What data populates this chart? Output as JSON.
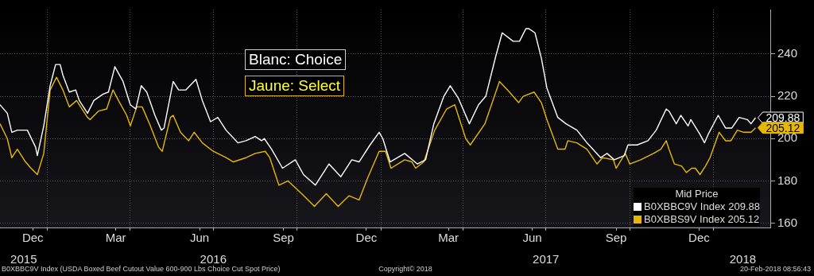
{
  "chart_data": {
    "type": "line",
    "legend_title": "Mid Price",
    "legend": "bottom right",
    "grid": true,
    "marker": "none",
    "line_style": "solid",
    "xlim": [
      "2015-11-10",
      "2018-03-05"
    ],
    "xticks": [
      {
        "value": "2015-12-16",
        "label": "Dec"
      },
      {
        "value": "2016-01-01",
        "label": null
      },
      {
        "value": "2016-03-16",
        "label": "Mar"
      },
      {
        "value": "2016-04-01",
        "label": null
      },
      {
        "value": "2016-06-16",
        "label": "Jun"
      },
      {
        "value": "2016-07-01",
        "label": null
      },
      {
        "value": "2016-09-16",
        "label": "Sep"
      },
      {
        "value": "2016-10-01",
        "label": null
      },
      {
        "value": "2016-12-16",
        "label": "Dec"
      },
      {
        "value": "2017-01-01",
        "label": null
      },
      {
        "value": "2017-03-16",
        "label": "Mar"
      },
      {
        "value": "2017-04-01",
        "label": null
      },
      {
        "value": "2017-06-16",
        "label": "Jun"
      },
      {
        "value": "2017-07-01",
        "label": null
      },
      {
        "value": "2017-09-16",
        "label": "Sep"
      },
      {
        "value": "2017-10-01",
        "label": null
      },
      {
        "value": "2017-12-16",
        "label": "Dec"
      },
      {
        "value": "2018-01-01",
        "label": null
      }
    ],
    "x2lim": [
      "2015-11-10",
      "2018-03-05"
    ],
    "x2ticks": [
      {
        "value": "2015-12-06",
        "label": "2015"
      },
      {
        "value": "2016-07-01",
        "label": "2016"
      },
      {
        "value": "2017-07-01",
        "label": "2017"
      },
      {
        "value": "2018-02-02",
        "label": "2018"
      }
    ],
    "ylim": [
      158,
      261
    ],
    "yticks": [
      160,
      180,
      200,
      220,
      240
    ],
    "annotations": [
      "Blanc: Choice",
      "Jaune: Select",
      {
        "text": "209.88",
        "x": "2018-02-16",
        "y": 209.88
      },
      {
        "text": "205.12",
        "x": "2018-02-16",
        "y": 205.12
      },
      "B0XBBC9V Index (USDA Boxed Beef Cutout Value 600-900 Lbs Choice Cut Spot Price)",
      "Copyright© 2018",
      "20-Feb-2018 08:56:43"
    ],
    "series": [
      {
        "name": "B0XBBC9V Index 209.88",
        "color": "#ffffff",
        "x": [
          "2015-11-10",
          "2015-11-18",
          "2015-11-23",
          "2015-11-29",
          "2015-12-10",
          "2015-12-19",
          "2015-12-21",
          "2015-12-28",
          "2016-01-04",
          "2016-01-10",
          "2016-01-15",
          "2016-01-18",
          "2016-01-25",
          "2016-02-01",
          "2016-02-05",
          "2016-02-14",
          "2016-02-21",
          "2016-03-02",
          "2016-03-08",
          "2016-03-15",
          "2016-03-24",
          "2016-04-01",
          "2016-04-07",
          "2016-04-13",
          "2016-04-19",
          "2016-04-28",
          "2016-05-05",
          "2016-05-08",
          "2016-05-18",
          "2016-05-24",
          "2016-06-01",
          "2016-06-12",
          "2016-06-19",
          "2016-06-28",
          "2016-07-06",
          "2016-07-15",
          "2016-07-28",
          "2016-08-06",
          "2016-08-16",
          "2016-08-23",
          "2016-08-26",
          "2016-09-03",
          "2016-09-15",
          "2016-09-29",
          "2016-10-08",
          "2016-10-21",
          "2016-11-05",
          "2016-11-18",
          "2016-11-30",
          "2016-12-08",
          "2016-12-20",
          "2016-12-30",
          "2017-01-03",
          "2017-01-11",
          "2017-01-27",
          "2017-02-10",
          "2017-02-19",
          "2017-02-28",
          "2017-03-11",
          "2017-03-18",
          "2017-03-27",
          "2017-04-08",
          "2017-04-18",
          "2017-04-26",
          "2017-05-07",
          "2017-05-14",
          "2017-05-26",
          "2017-06-02",
          "2017-06-09",
          "2017-06-12",
          "2017-06-19",
          "2017-06-26",
          "2017-07-02",
          "2017-07-14",
          "2017-07-23",
          "2017-08-04",
          "2017-08-15",
          "2017-08-30",
          "2017-09-06",
          "2017-09-14",
          "2017-09-25",
          "2017-09-29",
          "2017-10-09",
          "2017-10-21",
          "2017-10-30",
          "2017-11-10",
          "2017-11-13",
          "2017-11-21",
          "2017-11-26",
          "2017-12-04",
          "2017-12-07",
          "2017-12-17",
          "2017-12-22",
          "2017-12-26",
          "2018-01-06",
          "2018-01-14",
          "2018-01-21",
          "2018-01-29",
          "2018-02-07",
          "2018-02-11",
          "2018-02-16"
        ],
        "values": [
          216,
          212,
          203,
          204,
          204,
          196,
          192,
          206,
          225,
          235,
          235,
          230,
          222,
          223,
          218,
          212,
          218,
          221,
          222,
          234,
          227,
          216,
          214,
          225,
          222,
          211,
          204,
          205,
          227,
          223,
          223,
          228,
          218,
          208,
          210,
          204,
          198,
          199,
          201,
          199,
          200,
          195,
          186,
          190,
          183,
          178,
          188,
          182,
          190,
          189,
          197,
          203,
          200,
          189,
          193,
          188,
          190,
          207,
          220,
          225,
          219,
          207,
          216,
          220,
          239,
          250,
          246,
          246,
          252,
          252,
          250,
          238,
          224,
          210,
          207,
          204,
          198,
          191,
          193,
          190,
          192,
          197,
          197,
          199,
          204,
          214,
          213,
          207,
          211,
          206,
          209,
          202,
          198,
          202,
          211,
          205,
          205,
          210,
          209,
          207,
          209.88
        ]
      },
      {
        "name": "B0XBBS9V Index 205.12",
        "color": "#e6b800",
        "x": [
          "2015-11-10",
          "2015-11-18",
          "2015-11-23",
          "2015-11-29",
          "2015-12-08",
          "2015-12-14",
          "2015-12-21",
          "2015-12-28",
          "2016-01-04",
          "2016-01-11",
          "2016-01-18",
          "2016-01-25",
          "2016-02-02",
          "2016-02-14",
          "2016-02-17",
          "2016-02-26",
          "2016-03-06",
          "2016-03-13",
          "2016-03-19",
          "2016-03-28",
          "2016-04-01",
          "2016-04-08",
          "2016-04-14",
          "2016-04-23",
          "2016-05-02",
          "2016-05-06",
          "2016-05-15",
          "2016-05-18",
          "2016-05-26",
          "2016-06-04",
          "2016-06-10",
          "2016-06-19",
          "2016-07-01",
          "2016-07-15",
          "2016-07-23",
          "2016-08-06",
          "2016-08-16",
          "2016-08-27",
          "2016-09-01",
          "2016-09-11",
          "2016-09-21",
          "2016-10-06",
          "2016-10-20",
          "2016-11-02",
          "2016-11-15",
          "2016-11-27",
          "2016-12-08",
          "2016-12-17",
          "2016-12-30",
          "2017-01-06",
          "2017-01-12",
          "2017-01-27",
          "2017-02-04",
          "2017-02-08",
          "2017-02-17",
          "2017-03-01",
          "2017-03-14",
          "2017-03-23",
          "2017-04-04",
          "2017-04-09",
          "2017-04-25",
          "2017-05-11",
          "2017-05-22",
          "2017-06-01",
          "2017-06-06",
          "2017-06-18",
          "2017-06-26",
          "2017-07-02",
          "2017-07-14",
          "2017-07-22",
          "2017-07-25",
          "2017-08-04",
          "2017-08-15",
          "2017-08-26",
          "2017-09-01",
          "2017-09-13",
          "2017-09-16",
          "2017-09-26",
          "2017-10-01",
          "2017-10-13",
          "2017-10-27",
          "2017-11-04",
          "2017-11-10",
          "2017-11-13",
          "2017-11-19",
          "2017-11-27",
          "2017-12-02",
          "2017-12-08",
          "2017-12-12",
          "2017-12-17",
          "2017-12-23",
          "2017-12-28",
          "2018-01-07",
          "2018-01-14",
          "2018-01-20",
          "2018-01-27",
          "2018-02-03",
          "2018-02-11",
          "2018-02-16"
        ],
        "values": [
          207,
          200,
          191,
          195,
          189,
          186,
          183,
          193,
          223,
          229,
          223,
          215,
          218,
          210,
          209,
          213,
          214,
          223,
          218,
          211,
          206,
          215,
          215,
          206,
          196,
          194,
          210,
          211,
          203,
          199,
          203,
          198,
          194,
          191,
          189,
          191,
          193,
          194,
          191,
          178,
          180,
          174,
          168,
          174,
          168,
          173,
          171,
          181,
          194,
          194,
          186,
          190,
          189,
          186,
          189,
          204,
          214,
          216,
          200,
          197,
          207,
          227,
          222,
          217,
          220,
          222,
          217,
          209,
          195,
          195,
          199,
          198,
          195,
          188,
          191,
          190,
          186,
          193,
          188,
          190,
          193,
          195,
          199,
          195,
          188,
          187,
          184,
          186,
          186,
          183,
          187,
          191,
          203,
          199,
          199,
          204,
          203,
          203,
          205.12
        ]
      }
    ]
  }
}
